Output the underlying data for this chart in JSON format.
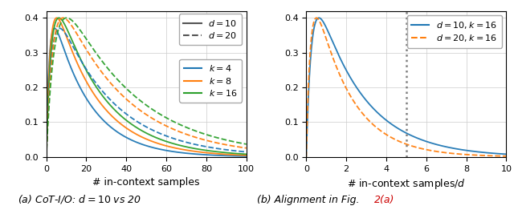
{
  "left": {
    "xlabel": "# in-context samples",
    "xlim": [
      0,
      100
    ],
    "ylim": [
      0.0,
      0.42
    ],
    "yticks": [
      0.0,
      0.1,
      0.2,
      0.3,
      0.4
    ],
    "xticks": [
      0,
      20,
      40,
      60,
      80,
      100
    ],
    "curves": [
      {
        "d": 10,
        "k": 4,
        "color": "#1f77b4",
        "linestyle": "solid"
      },
      {
        "d": 10,
        "k": 8,
        "color": "#ff7f0e",
        "linestyle": "solid"
      },
      {
        "d": 10,
        "k": 16,
        "color": "#2ca02c",
        "linestyle": "solid"
      },
      {
        "d": 20,
        "k": 4,
        "color": "#1f77b4",
        "linestyle": "dashed"
      },
      {
        "d": 20,
        "k": 8,
        "color": "#ff7f0e",
        "linestyle": "dashed"
      },
      {
        "d": 20,
        "k": 16,
        "color": "#2ca02c",
        "linestyle": "dashed"
      }
    ]
  },
  "right": {
    "xlabel": "# in-context samples/$d$",
    "xlim": [
      0,
      10
    ],
    "ylim": [
      0.0,
      0.42
    ],
    "yticks": [
      0.0,
      0.1,
      0.2,
      0.3,
      0.4
    ],
    "xticks": [
      0,
      2,
      4,
      6,
      8,
      10
    ],
    "vline": 5,
    "curves": [
      {
        "d": 10,
        "k": 16,
        "color": "#1f77b4",
        "linestyle": "solid"
      },
      {
        "d": 20,
        "k": 16,
        "color": "#ff7f0e",
        "linestyle": "dashed"
      }
    ]
  },
  "gray_solid_color": "#555555",
  "caption_a": "(a) CoT-I/O: $d = 10$ vs 20",
  "caption_b_black": "(b) Alignment in Fig. ",
  "caption_b_red": "2(a)",
  "caption_fontsize": 9,
  "legend_fontsize": 8,
  "line_width": 1.3
}
